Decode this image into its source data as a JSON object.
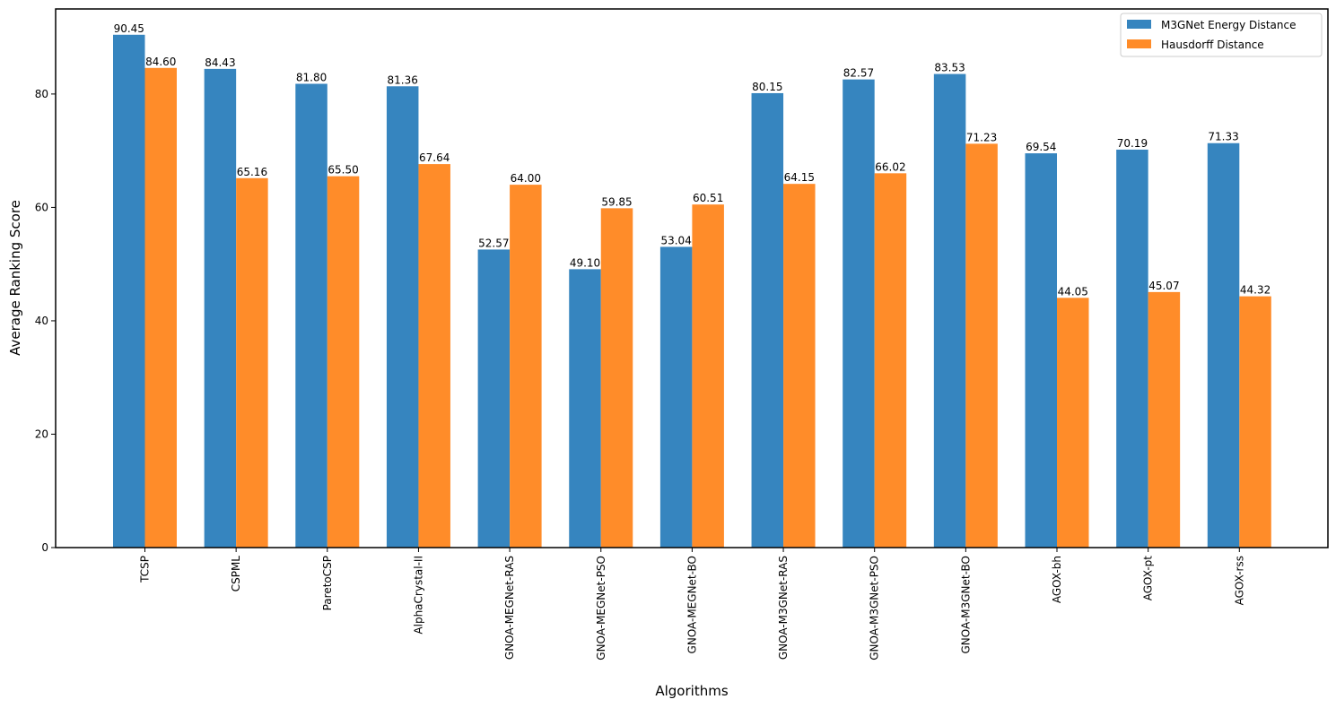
{
  "chart_data": {
    "type": "bar",
    "title": "",
    "xlabel": "Algorithms",
    "ylabel": "Average Ranking Score",
    "ylim": [
      0,
      95
    ],
    "yticks": [
      0,
      20,
      40,
      60,
      80
    ],
    "grid": false,
    "legend_position": "top-right",
    "categories": [
      "TCSP",
      "CSPML",
      "ParetoCSP",
      "AlphaCrystal-II",
      "GNOA-MEGNet-RAS",
      "GNOA-MEGNet-PSO",
      "GNOA-MEGNet-BO",
      "GNOA-M3GNet-RAS",
      "GNOA-M3GNet-PSO",
      "GNOA-M3GNet-BO",
      "AGOX-bh",
      "AGOX-pt",
      "AGOX-rss"
    ],
    "series": [
      {
        "name": "M3GNet Energy Distance",
        "color": "#3685bf",
        "values": [
          90.45,
          84.43,
          81.8,
          81.36,
          52.57,
          49.1,
          53.04,
          80.15,
          82.57,
          83.53,
          69.54,
          70.19,
          71.33
        ],
        "labels": [
          "90.45",
          "84.43",
          "81.80",
          "81.36",
          "52.57",
          "49.10",
          "53.04",
          "80.15",
          "82.57",
          "83.53",
          "69.54",
          "70.19",
          "71.33"
        ]
      },
      {
        "name": "Hausdorff Distance",
        "color": "#ff8c29",
        "values": [
          84.6,
          65.16,
          65.5,
          67.64,
          64.0,
          59.85,
          60.51,
          64.15,
          66.02,
          71.23,
          44.05,
          45.07,
          44.32
        ],
        "labels": [
          "84.60",
          "65.16",
          "65.50",
          "67.64",
          "64.00",
          "59.85",
          "60.51",
          "64.15",
          "66.02",
          "71.23",
          "44.05",
          "45.07",
          "44.32"
        ]
      }
    ]
  }
}
